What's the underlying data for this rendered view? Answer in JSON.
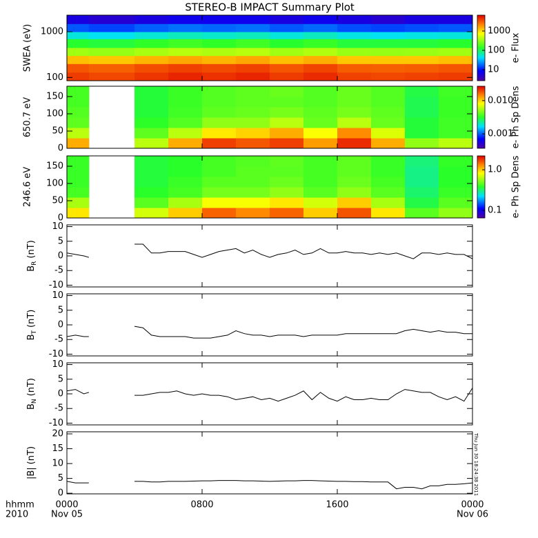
{
  "title": "STEREO-B IMPACT Summary Plot",
  "timestamp": "Thu Jun 30 18:24:38 2011",
  "chart_data": [
    {
      "type": "heatmap",
      "ylabel": "SWEA (eV)",
      "ylog": true,
      "ylim": [
        85,
        2300
      ],
      "yticks": [
        100,
        1000
      ],
      "xlim": [
        0,
        24
      ],
      "xticks": [
        0,
        8,
        16,
        24
      ],
      "xedges": [
        0,
        1.3,
        4,
        6,
        8,
        10,
        12,
        14,
        16,
        18,
        20,
        22,
        24
      ],
      "yedges": [
        85,
        130,
        200,
        300,
        450,
        700,
        1000,
        1500,
        2300
      ],
      "values": [
        [
          4000,
          3600,
          4200,
          4800,
          4400,
          4800,
          4000,
          4600,
          3800,
          3600,
          3800,
          4000
        ],
        [
          3200,
          2900,
          3400,
          3800,
          3500,
          3800,
          3200,
          3700,
          3000,
          2900,
          3000,
          3200
        ],
        [
          1300,
          1200,
          1400,
          1600,
          1400,
          1600,
          1300,
          1500,
          1200,
          1200,
          1200,
          1300
        ],
        [
          350,
          320,
          370,
          420,
          390,
          420,
          350,
          400,
          330,
          320,
          330,
          350
        ],
        [
          130,
          120,
          140,
          160,
          140,
          160,
          130,
          150,
          120,
          120,
          120,
          130
        ],
        [
          50,
          45,
          52,
          60,
          55,
          60,
          50,
          58,
          48,
          45,
          48,
          50
        ],
        [
          16,
          14,
          17,
          19,
          18,
          19,
          16,
          18,
          15,
          14,
          15,
          16
        ],
        [
          6,
          5,
          6,
          7,
          7,
          7,
          6,
          7,
          6,
          5,
          6,
          6
        ]
      ],
      "colorbar": {
        "label": "e- Flux",
        "log": true,
        "clim": [
          2.7,
          6600
        ],
        "ticks": [
          10,
          100,
          1000
        ]
      }
    },
    {
      "type": "heatmap",
      "ylabel": "650.7 eV",
      "ylog": false,
      "ylim": [
        0,
        180
      ],
      "yticks": [
        0,
        50,
        100,
        150
      ],
      "xlim": [
        0,
        24
      ],
      "xticks": [
        0,
        8,
        16,
        24
      ],
      "xedges": [
        0,
        1.3,
        4,
        6,
        8,
        10,
        12,
        14,
        16,
        18,
        20,
        22,
        24
      ],
      "yedges": [
        0,
        30,
        60,
        90,
        120,
        150,
        180
      ],
      "values": [
        [
          0.012,
          null,
          0.006,
          0.012,
          0.02,
          0.018,
          0.02,
          0.013,
          0.022,
          0.012,
          0.005,
          0.006
        ],
        [
          0.006,
          null,
          0.004,
          0.006,
          0.009,
          0.01,
          0.012,
          0.008,
          0.014,
          0.007,
          0.003,
          0.0035
        ],
        [
          0.004,
          null,
          0.0032,
          0.0038,
          0.005,
          0.005,
          0.006,
          0.0042,
          0.006,
          0.0042,
          0.003,
          0.0035
        ],
        [
          0.0038,
          null,
          0.003,
          0.0035,
          0.004,
          0.0042,
          0.0045,
          0.004,
          0.0045,
          0.004,
          0.0028,
          0.0034
        ],
        [
          0.0036,
          null,
          0.003,
          0.0034,
          0.0038,
          0.004,
          0.004,
          0.0038,
          0.0042,
          0.0038,
          0.0028,
          0.0034
        ],
        [
          0.0036,
          null,
          0.003,
          0.0034,
          0.0038,
          0.004,
          0.0042,
          0.0038,
          0.0042,
          0.0038,
          0.0029,
          0.0035
        ]
      ],
      "colorbar": {
        "label": "e- Ph Sp Dens",
        "log": true,
        "clim": [
          0.00037,
          0.027
        ],
        "ticks": [
          {
            "value": 0.01,
            "label": "0.010"
          },
          0.001
        ]
      }
    },
    {
      "type": "heatmap",
      "ylabel": "246.6 eV",
      "ylog": false,
      "ylim": [
        0,
        180
      ],
      "yticks": [
        0,
        50,
        100,
        150
      ],
      "xlim": [
        0,
        24
      ],
      "xticks": [
        0,
        8,
        16,
        24
      ],
      "xedges": [
        0,
        1.3,
        4,
        6,
        8,
        10,
        12,
        14,
        16,
        18,
        20,
        22,
        24
      ],
      "yedges": [
        0,
        30,
        60,
        90,
        120,
        150,
        180
      ],
      "values": [
        [
          0.9,
          null,
          0.7,
          1.0,
          1.5,
          1.3,
          1.5,
          1.0,
          1.6,
          0.9,
          0.45,
          0.55
        ],
        [
          0.6,
          null,
          0.45,
          0.6,
          0.8,
          0.8,
          0.9,
          0.7,
          1.0,
          0.6,
          0.35,
          0.45
        ],
        [
          0.42,
          null,
          0.38,
          0.42,
          0.5,
          0.5,
          0.55,
          0.45,
          0.55,
          0.45,
          0.32,
          0.4
        ],
        [
          0.4,
          null,
          0.36,
          0.4,
          0.45,
          0.45,
          0.48,
          0.42,
          0.48,
          0.42,
          0.3,
          0.38
        ],
        [
          0.4,
          null,
          0.36,
          0.38,
          0.42,
          0.45,
          0.45,
          0.42,
          0.46,
          0.4,
          0.3,
          0.38
        ],
        [
          0.4,
          null,
          0.36,
          0.38,
          0.42,
          0.44,
          0.46,
          0.42,
          0.46,
          0.4,
          0.31,
          0.39
        ]
      ],
      "colorbar": {
        "label": "e- Ph Sp Dens",
        "log": true,
        "clim": [
          0.065,
          2.2
        ],
        "ticks": [
          {
            "value": 1,
            "label": "1.0"
          },
          0.1
        ]
      }
    },
    {
      "type": "line",
      "ylabel": {
        "text": "B",
        "sub": "R",
        "unit": "(nT)"
      },
      "ylim": [
        -10.6,
        10.6
      ],
      "yticks": [
        -10,
        -5,
        0,
        5,
        10
      ],
      "xlim": [
        0,
        24
      ],
      "xticks": [
        0,
        8,
        16,
        24
      ],
      "color": "#000000",
      "x": [
        0,
        0.5,
        1,
        1.3,
        2,
        4,
        4.5,
        5,
        5.5,
        6,
        6.5,
        7,
        7.5,
        8,
        8.5,
        9,
        9.5,
        10,
        10.5,
        11,
        11.5,
        12,
        12.5,
        13,
        13.5,
        14,
        14.5,
        15,
        15.5,
        16,
        16.5,
        17,
        17.5,
        18,
        18.5,
        19,
        19.5,
        20,
        20.5,
        21,
        21.5,
        22,
        22.5,
        23,
        23.5,
        24
      ],
      "values": [
        1,
        0.5,
        0,
        -0.5,
        null,
        4,
        4,
        1,
        1,
        1.5,
        1.5,
        1.5,
        0.5,
        -0.5,
        0.5,
        1.5,
        2,
        2.5,
        1,
        2,
        0.5,
        -0.5,
        0.5,
        1,
        2,
        0.5,
        1,
        2.5,
        1,
        1,
        1.5,
        1,
        1,
        0.5,
        1,
        0.5,
        1,
        0,
        -1,
        1,
        1,
        0.5,
        1,
        0.5,
        0.5,
        -1
      ]
    },
    {
      "type": "line",
      "ylabel": {
        "text": "B",
        "sub": "T",
        "unit": "(nT)"
      },
      "ylim": [
        -10.6,
        10.6
      ],
      "yticks": [
        -10,
        -5,
        0,
        5,
        10
      ],
      "xlim": [
        0,
        24
      ],
      "xticks": [
        0,
        8,
        16,
        24
      ],
      "color": "#000000",
      "x": [
        0,
        0.5,
        1,
        1.3,
        2,
        4,
        4.5,
        5,
        5.5,
        6,
        6.5,
        7,
        7.5,
        8,
        8.5,
        9,
        9.5,
        10,
        10.5,
        11,
        11.5,
        12,
        12.5,
        13,
        13.5,
        14,
        14.5,
        15,
        15.5,
        16,
        16.5,
        17,
        17.5,
        18,
        18.5,
        19,
        19.5,
        20,
        20.5,
        21,
        21.5,
        22,
        22.5,
        23,
        23.5,
        24
      ],
      "values": [
        -4,
        -3.5,
        -4,
        -4,
        null,
        -0.5,
        -1,
        -3.5,
        -4,
        -4,
        -4,
        -4,
        -4.5,
        -4.5,
        -4.5,
        -4,
        -3.5,
        -2,
        -3,
        -3.5,
        -3.5,
        -4,
        -3.5,
        -3.5,
        -3.5,
        -4,
        -3.5,
        -3.5,
        -3.5,
        -3.5,
        -3,
        -3,
        -3,
        -3,
        -3,
        -3,
        -3,
        -2,
        -1.5,
        -2,
        -2.5,
        -2,
        -2.5,
        -2.5,
        -3,
        -3
      ]
    },
    {
      "type": "line",
      "ylabel": {
        "text": "B",
        "sub": "N",
        "unit": "(nT)"
      },
      "ylim": [
        -10.6,
        10.6
      ],
      "yticks": [
        -10,
        -5,
        0,
        5,
        10
      ],
      "xlim": [
        0,
        24
      ],
      "xticks": [
        0,
        8,
        16,
        24
      ],
      "color": "#000000",
      "x": [
        0,
        0.5,
        1,
        1.3,
        2,
        4,
        4.5,
        5,
        5.5,
        6,
        6.5,
        7,
        7.5,
        8,
        8.5,
        9,
        9.5,
        10,
        10.5,
        11,
        11.5,
        12,
        12.5,
        13,
        13.5,
        14,
        14.5,
        15,
        15.5,
        16,
        16.5,
        17,
        17.5,
        18,
        18.5,
        19,
        19.5,
        20,
        20.5,
        21,
        21.5,
        22,
        22.5,
        23,
        23.5,
        24
      ],
      "values": [
        1,
        1.5,
        0,
        0.5,
        null,
        -0.5,
        -0.5,
        0,
        0.5,
        0.5,
        1,
        0,
        -0.5,
        0,
        -0.5,
        -0.5,
        -1,
        -2,
        -1.5,
        -1,
        -2,
        -1.5,
        -2.5,
        -1.5,
        -0.5,
        1,
        -2,
        0.5,
        -1.5,
        -2.5,
        -1,
        -2,
        -2,
        -1.5,
        -2,
        -2,
        0,
        1.5,
        1,
        0.5,
        0.5,
        -1,
        -2,
        -1,
        -2.5,
        2
      ]
    },
    {
      "type": "line",
      "ylabel": {
        "text": "|B|",
        "unit": "(nT)"
      },
      "ylim": [
        -0.2,
        20.7
      ],
      "yticks": [
        0,
        5,
        10,
        15,
        20
      ],
      "xlim": [
        0,
        24
      ],
      "color": "#000000",
      "xticks": [
        {
          "value": 0,
          "label": "0000"
        },
        {
          "value": 8,
          "label": "0800"
        },
        {
          "value": 16,
          "label": "1600"
        },
        {
          "value": 24,
          "label": "0000"
        }
      ],
      "date_labels": [
        {
          "value": 0,
          "label": "Nov 05"
        },
        {
          "value": 24,
          "label": "Nov 06"
        }
      ],
      "xlabel": "hhmm",
      "xlabel2": "2010",
      "x": [
        0,
        0.5,
        1,
        1.3,
        2,
        4,
        4.5,
        5,
        5.5,
        6,
        6.5,
        7,
        7.5,
        8,
        8.5,
        9,
        9.5,
        10,
        10.5,
        11,
        11.5,
        12,
        12.5,
        13,
        13.5,
        14,
        14.5,
        15,
        15.5,
        16,
        16.5,
        17,
        17.5,
        18,
        18.5,
        19,
        19.5,
        20,
        20.5,
        21,
        21.5,
        22,
        22.5,
        23,
        23.5,
        24
      ],
      "values": [
        4,
        3.5,
        3.5,
        3.5,
        null,
        4,
        4,
        3.8,
        3.8,
        4,
        4,
        4,
        4.1,
        4.2,
        4.2,
        4.3,
        4.3,
        4.3,
        4.2,
        4.2,
        4.1,
        4,
        4.1,
        4.2,
        4.2,
        4.3,
        4.3,
        4.2,
        4.1,
        4,
        4,
        3.9,
        3.9,
        3.8,
        3.8,
        3.8,
        1.5,
        2,
        2,
        1.5,
        2.5,
        2.5,
        3,
        3,
        3.2,
        3.5
      ]
    }
  ]
}
